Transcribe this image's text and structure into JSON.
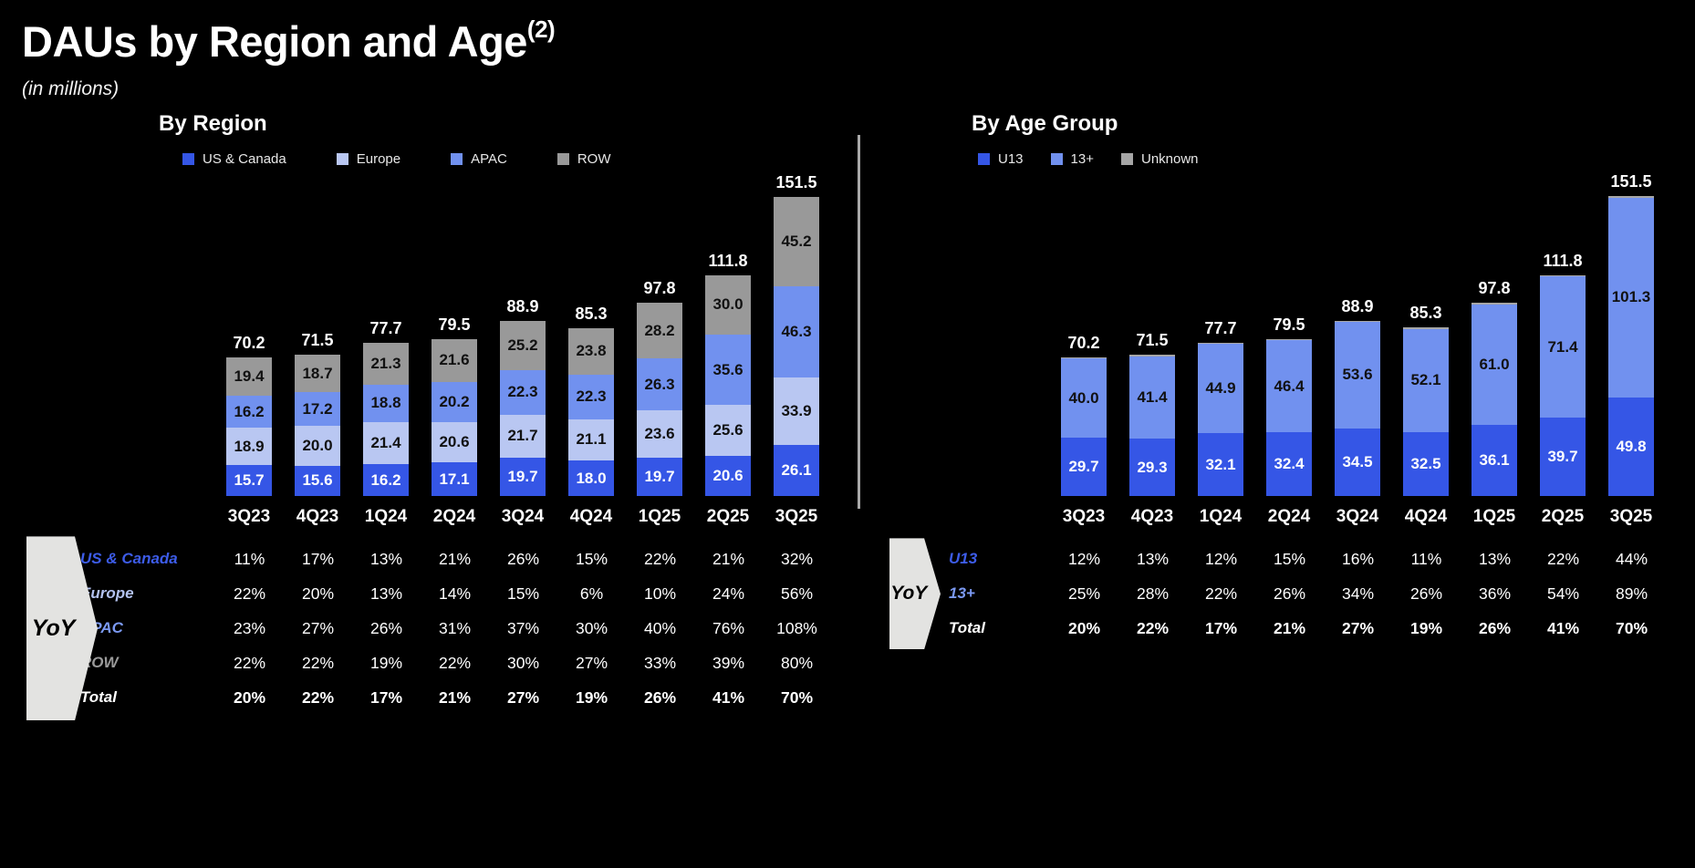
{
  "page": {
    "title": "DAUs by Region and Age",
    "title_superscript": "(2)",
    "subtitle": "(in millions)"
  },
  "yoy_label": "YoY",
  "chart_data": [
    {
      "type": "bar",
      "stacked": true,
      "title": "By Region",
      "legend_position": "top",
      "grid": false,
      "categories": [
        "3Q23",
        "4Q23",
        "1Q24",
        "2Q24",
        "3Q24",
        "4Q24",
        "1Q25",
        "2Q25",
        "3Q25"
      ],
      "totals": [
        70.2,
        71.5,
        77.7,
        79.5,
        88.9,
        85.3,
        97.8,
        111.8,
        151.5
      ],
      "series": [
        {
          "name": "US & Canada",
          "color": "#3556e6",
          "text_color": "#ffffff",
          "labels_visible": true,
          "values": [
            15.7,
            15.6,
            16.2,
            17.1,
            19.7,
            18.0,
            19.7,
            20.6,
            26.1
          ]
        },
        {
          "name": "Europe",
          "color": "#b9c7f2",
          "text_color": "#111111",
          "labels_visible": true,
          "values": [
            18.9,
            20.0,
            21.4,
            20.6,
            21.7,
            21.1,
            23.6,
            25.6,
            33.9
          ]
        },
        {
          "name": "APAC",
          "color": "#7191ef",
          "text_color": "#111111",
          "labels_visible": true,
          "values": [
            16.2,
            17.2,
            18.8,
            20.2,
            22.3,
            22.3,
            26.3,
            35.6,
            46.3
          ]
        },
        {
          "name": "ROW",
          "color": "#999999",
          "text_color": "#111111",
          "labels_visible": true,
          "values": [
            19.4,
            18.7,
            21.3,
            21.6,
            25.2,
            23.8,
            28.2,
            30.0,
            45.2
          ]
        }
      ],
      "yoy_table": {
        "rows": [
          {
            "label": "US & Canada",
            "label_color": "#3d5ce8",
            "bold": false,
            "values": [
              "11%",
              "17%",
              "13%",
              "21%",
              "26%",
              "15%",
              "22%",
              "21%",
              "32%"
            ]
          },
          {
            "label": "Europe",
            "label_color": "#b3c2ef",
            "bold": false,
            "values": [
              "22%",
              "20%",
              "13%",
              "14%",
              "15%",
              "6%",
              "10%",
              "24%",
              "56%"
            ]
          },
          {
            "label": "APAC",
            "label_color": "#7b99f2",
            "bold": false,
            "values": [
              "23%",
              "27%",
              "26%",
              "31%",
              "37%",
              "30%",
              "40%",
              "76%",
              "108%"
            ]
          },
          {
            "label": "ROW",
            "label_color": "#9a9a9a",
            "bold": false,
            "values": [
              "22%",
              "22%",
              "19%",
              "22%",
              "30%",
              "27%",
              "33%",
              "39%",
              "80%"
            ]
          },
          {
            "label": "Total",
            "label_color": "#ffffff",
            "bold": true,
            "values": [
              "20%",
              "22%",
              "17%",
              "21%",
              "27%",
              "19%",
              "26%",
              "41%",
              "70%"
            ]
          }
        ]
      }
    },
    {
      "type": "bar",
      "stacked": true,
      "title": "By Age Group",
      "legend_position": "top",
      "grid": false,
      "categories": [
        "3Q23",
        "4Q23",
        "1Q24",
        "2Q24",
        "3Q24",
        "4Q24",
        "1Q25",
        "2Q25",
        "3Q25"
      ],
      "totals": [
        70.2,
        71.5,
        77.7,
        79.5,
        88.9,
        85.3,
        97.8,
        111.8,
        151.5
      ],
      "series": [
        {
          "name": "U13",
          "color": "#3556e6",
          "text_color": "#ffffff",
          "labels_visible": true,
          "values": [
            29.7,
            29.3,
            32.1,
            32.4,
            34.5,
            32.5,
            36.1,
            39.7,
            49.8
          ]
        },
        {
          "name": "13+",
          "color": "#7191ef",
          "text_color": "#111111",
          "labels_visible": true,
          "values": [
            40.0,
            41.4,
            44.9,
            46.4,
            53.6,
            52.1,
            61.0,
            71.4,
            101.3
          ]
        },
        {
          "name": "Unknown",
          "color": "#a6a6a6",
          "text_color": "#111111",
          "labels_visible": false,
          "values": [
            0.5,
            0.8,
            0.7,
            0.7,
            0.8,
            0.7,
            0.7,
            0.7,
            0.4
          ]
        }
      ],
      "yoy_table": {
        "rows": [
          {
            "label": "U13",
            "label_color": "#3d5ce8",
            "bold": false,
            "values": [
              "12%",
              "13%",
              "12%",
              "15%",
              "16%",
              "11%",
              "13%",
              "22%",
              "44%"
            ]
          },
          {
            "label": "13+",
            "label_color": "#7b99f2",
            "bold": false,
            "values": [
              "25%",
              "28%",
              "22%",
              "26%",
              "34%",
              "26%",
              "36%",
              "54%",
              "89%"
            ]
          },
          {
            "label": "Total",
            "label_color": "#ffffff",
            "bold": true,
            "values": [
              "20%",
              "22%",
              "17%",
              "21%",
              "27%",
              "19%",
              "26%",
              "41%",
              "70%"
            ]
          }
        ]
      }
    }
  ]
}
